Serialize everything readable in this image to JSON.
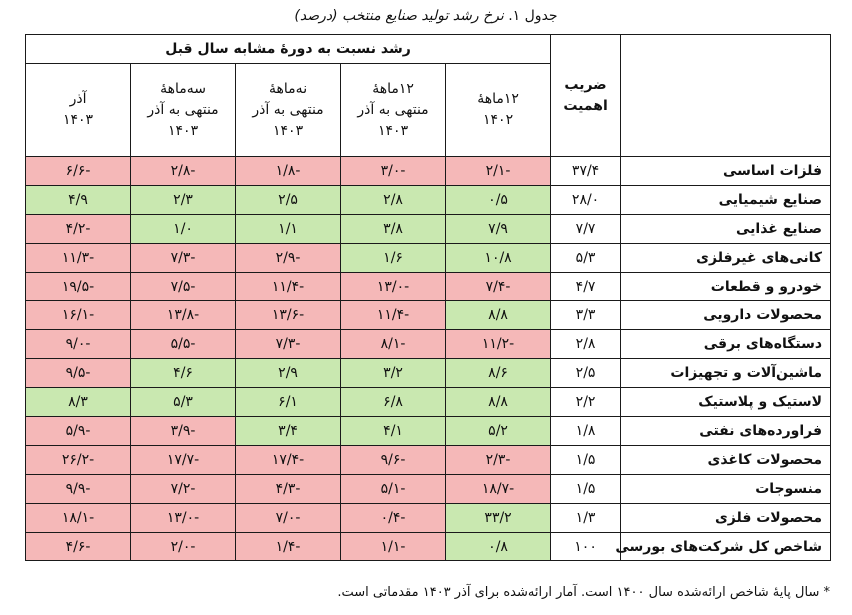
{
  "caption": {
    "label": "جدول ۱.",
    "title": "نرخ رشد تولید صنایع منتخب (درصد)"
  },
  "header": {
    "group": "رشد نسبت به دورهٔ مشابه سال قبل",
    "weight": [
      "ضریب",
      "اهمیت"
    ],
    "periods": [
      [
        "۱۲ماههٔ",
        "۱۴۰۲"
      ],
      [
        "۱۲ماههٔ",
        "منتهی به آذر",
        "۱۴۰۳"
      ],
      [
        "نه‌ماههٔ",
        "منتهی به آذر",
        "۱۴۰۳"
      ],
      [
        "سه‌ماههٔ",
        "منتهی به آذر",
        "۱۴۰۳"
      ],
      [
        "آذر",
        "۱۴۰۳"
      ]
    ]
  },
  "rows": [
    {
      "name": "فلزات اساسی",
      "weight": "۳۷/۴",
      "values": [
        "۲/۱-",
        "۳/۰-",
        "۱/۸-",
        "۲/۸-",
        "۶/۶-"
      ],
      "status": [
        "neg",
        "neg",
        "neg",
        "neg",
        "neg"
      ]
    },
    {
      "name": "صنایع شیمیایی",
      "weight": "۲۸/۰",
      "values": [
        "۰/۵",
        "۲/۸",
        "۲/۵",
        "۲/۳",
        "۴/۹"
      ],
      "status": [
        "pos",
        "pos",
        "pos",
        "pos",
        "pos"
      ]
    },
    {
      "name": "صنایع غذایی",
      "weight": "۷/۷",
      "values": [
        "۷/۹",
        "۳/۸",
        "۱/۱",
        "۱/۰",
        "۴/۲-"
      ],
      "status": [
        "pos",
        "pos",
        "pos",
        "pos",
        "neg"
      ]
    },
    {
      "name": "کانی‌های غیرفلزی",
      "weight": "۵/۳",
      "values": [
        "۱۰/۸",
        "۱/۶",
        "۲/۹-",
        "۷/۳-",
        "۱۱/۳-"
      ],
      "status": [
        "pos",
        "pos",
        "neg",
        "neg",
        "neg"
      ]
    },
    {
      "name": "خودرو و قطعات",
      "weight": "۴/۷",
      "values": [
        "۷/۴-",
        "۱۳/۰-",
        "۱۱/۴-",
        "۷/۵-",
        "۱۹/۵-"
      ],
      "status": [
        "neg",
        "neg",
        "neg",
        "neg",
        "neg"
      ]
    },
    {
      "name": "محصولات دارویی",
      "weight": "۳/۳",
      "values": [
        "۸/۸",
        "۱۱/۴-",
        "۱۳/۶-",
        "۱۳/۸-",
        "۱۶/۱-"
      ],
      "status": [
        "pos",
        "neg",
        "neg",
        "neg",
        "neg"
      ]
    },
    {
      "name": "دستگاه‌های برقی",
      "weight": "۲/۸",
      "values": [
        "۱۱/۲-",
        "۸/۱-",
        "۷/۳-",
        "۵/۵-",
        "۹/۰-"
      ],
      "status": [
        "neg",
        "neg",
        "neg",
        "neg",
        "neg"
      ]
    },
    {
      "name": "ماشین‌آلات و تجهیزات",
      "weight": "۲/۵",
      "values": [
        "۸/۶",
        "۳/۲",
        "۲/۹",
        "۴/۶",
        "۹/۵-"
      ],
      "status": [
        "pos",
        "pos",
        "pos",
        "pos",
        "neg"
      ]
    },
    {
      "name": "لاستیک و پلاستیک",
      "weight": "۲/۲",
      "values": [
        "۸/۸",
        "۶/۸",
        "۶/۱",
        "۵/۳",
        "۸/۳"
      ],
      "status": [
        "pos",
        "pos",
        "pos",
        "pos",
        "pos"
      ]
    },
    {
      "name": "فراورده‌های نفتی",
      "weight": "۱/۸",
      "values": [
        "۵/۲",
        "۴/۱",
        "۳/۴",
        "۳/۹-",
        "۵/۹-"
      ],
      "status": [
        "pos",
        "pos",
        "pos",
        "neg",
        "neg"
      ]
    },
    {
      "name": "محصولات کاغذی",
      "weight": "۱/۵",
      "values": [
        "۲/۳-",
        "۹/۶-",
        "۱۷/۴-",
        "۱۷/۷-",
        "۲۶/۲-"
      ],
      "status": [
        "neg",
        "neg",
        "neg",
        "neg",
        "neg"
      ]
    },
    {
      "name": "منسوجات",
      "weight": "۱/۵",
      "values": [
        "۱۸/۷-",
        "۵/۱-",
        "۴/۳-",
        "۷/۲-",
        "۹/۹-"
      ],
      "status": [
        "neg",
        "neg",
        "neg",
        "neg",
        "neg"
      ]
    },
    {
      "name": "محصولات فلزی",
      "weight": "۱/۳",
      "values": [
        "۳۳/۲",
        "۰/۴-",
        "۷/۰-",
        "۱۳/۰-",
        "۱۸/۱-"
      ],
      "status": [
        "pos",
        "neg",
        "neg",
        "neg",
        "neg"
      ]
    },
    {
      "name": "شاخص کل شرکت‌های بورسی",
      "weight": "۱۰۰",
      "values": [
        "۰/۸",
        "۱/۱-",
        "۱/۴-",
        "۲/۰-",
        "۴/۶-"
      ],
      "status": [
        "pos",
        "neg",
        "neg",
        "neg",
        "neg"
      ]
    }
  ],
  "footnote": "* سال پایهٔ شاخص ارائه‌شده سال ۱۴۰۰ است. آمار ارائه‌شده برای آذر ۱۴۰۳ مقدماتی است.",
  "colors": {
    "positive": "#c9e8b0",
    "negative": "#f5b8b8"
  }
}
